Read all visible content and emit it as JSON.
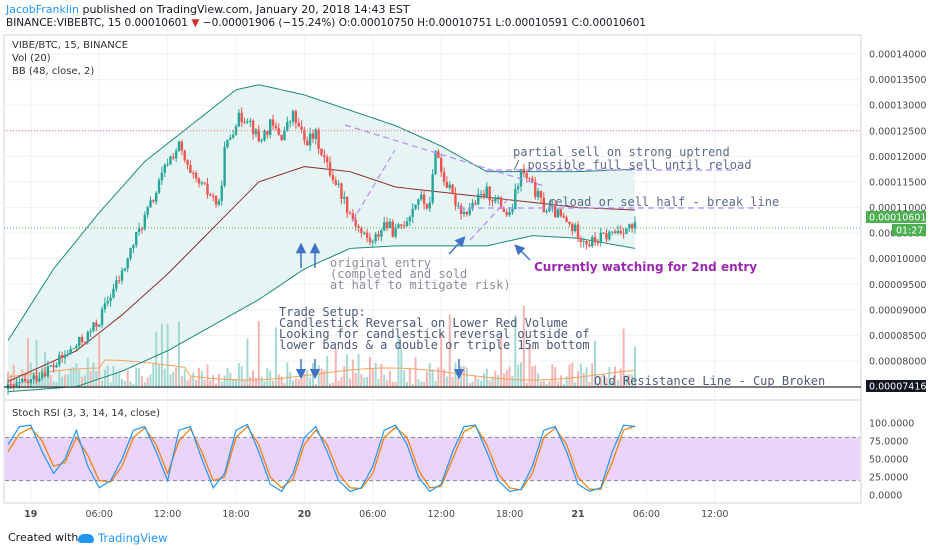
{
  "header": {
    "author": "JacobFranklin",
    "published": "published on TradingView.com, January 20, 2018 14:43 EST",
    "symbol": "BINANCE:VIBEBTC, 15",
    "last": "0.00010601",
    "change": "−0.00001906 (−15.24%)",
    "open": "O:0.00010750",
    "high": "H:0.00010751",
    "low": "L:0.00010591",
    "close": "C:0.00010601"
  },
  "indicators": {
    "main": "VIBE/BTC, 15, BINANCE",
    "vol": "Vol (20)",
    "bb": "BB (48, close, 2)",
    "stoch": "Stoch RSI (3, 3, 14, 14, close)"
  },
  "annotations": {
    "partial_sell_1": "partial sell on strong uptrend",
    "partial_sell_2": "/ possible full sell until reload",
    "reload": "reload or sell half - break line",
    "watching": "Currently watching for 2nd entry",
    "orig_1": "original entry",
    "orig_2": "(completed and sold",
    "orig_3": "at half to mitigate risk)",
    "setup_1": "Trade Setup:",
    "setup_2": "Candlestick Reversal on Lower Red Volume",
    "setup_3": "Looking for candlestick reversal outside of",
    "setup_4": "lower bands & a double or triple 15m bottom",
    "resistance": "Old Resistance Line - Cup Broken"
  },
  "price_axis": {
    "ticks": [
      "0.00014000",
      "0.00013500",
      "0.00013000",
      "0.00012500",
      "0.00012000",
      "0.00011500",
      "0.00011000",
      "0.00010500",
      "0.00010000",
      "0.00009500",
      "0.00009000",
      "0.00008500",
      "0.00008000"
    ],
    "tick_values": [
      14000,
      13500,
      13000,
      12500,
      12000,
      11500,
      11000,
      10500,
      10000,
      9500,
      9000,
      8500,
      8000
    ],
    "current_label": "0.00010601",
    "countdown": "01:27",
    "resistance_label": "0.00007416"
  },
  "stoch_axis": {
    "ticks": [
      "100.0000",
      "75.0000",
      "50.0000",
      "25.0000",
      "0.0000"
    ],
    "tick_values": [
      100,
      75,
      50,
      25,
      0
    ]
  },
  "time_axis": {
    "labels": [
      "19",
      "06:00",
      "12:00",
      "18:00",
      "20",
      "06:00",
      "12:00",
      "18:00",
      "21",
      "06:00",
      "12:00"
    ],
    "hours": [
      0,
      6,
      12,
      18,
      24,
      30,
      36,
      42,
      48,
      54,
      60
    ]
  },
  "footer": {
    "created": "Created with",
    "brand": "TradingView"
  },
  "colors": {
    "up": "#26a69a",
    "down": "#ef5350",
    "bb_band": "#1b8a7c",
    "bb_mid": "#8b2e2e",
    "bb_fill": "#e6f5f3",
    "dashed": "#b388ff",
    "watching": "#9c27b0",
    "anno_text": "#5c6b8a",
    "stoch_k": "#2196f3",
    "stoch_d": "#f57c00",
    "stoch_fill": "#ead4fb",
    "resistance": "#333333",
    "current": "#4caf50",
    "arrow": "#3f73c7"
  },
  "chart_data": {
    "type": "candlestick",
    "title": "VIBE/BTC, 15, BINANCE",
    "x_start": "2018-01-19 00:00",
    "x_range_hours": [
      -2,
      66
    ],
    "y_unit": "1e-8 BTC",
    "ylim": [
      7300,
      14200
    ],
    "series": [
      {
        "name": "VIBE/BTC",
        "close_path": [
          [
            -2,
            7450
          ],
          [
            0,
            7600
          ],
          [
            1,
            7800
          ],
          [
            2,
            7900
          ],
          [
            3,
            8100
          ],
          [
            4,
            8300
          ],
          [
            5,
            8500
          ],
          [
            6,
            8800
          ],
          [
            7,
            9300
          ],
          [
            8,
            9700
          ],
          [
            9,
            10300
          ],
          [
            10,
            10800
          ],
          [
            11,
            11300
          ],
          [
            12,
            11900
          ],
          [
            13,
            12200
          ],
          [
            14,
            11600
          ],
          [
            15,
            11400
          ],
          [
            16,
            11200
          ],
          [
            16.5,
            11000
          ],
          [
            17,
            12100
          ],
          [
            18,
            12700
          ],
          [
            19,
            12800
          ],
          [
            20,
            12300
          ],
          [
            21,
            12600
          ],
          [
            22,
            12400
          ],
          [
            23,
            12800
          ],
          [
            24,
            12300
          ],
          [
            25,
            12400
          ],
          [
            26,
            11800
          ],
          [
            27,
            11400
          ],
          [
            28,
            10900
          ],
          [
            29,
            10500
          ],
          [
            30,
            10300
          ],
          [
            31,
            10700
          ],
          [
            32,
            10500
          ],
          [
            33,
            10800
          ],
          [
            34,
            11200
          ],
          [
            35,
            11000
          ],
          [
            35.5,
            12200
          ],
          [
            36,
            11700
          ],
          [
            37,
            11200
          ],
          [
            38,
            10900
          ],
          [
            39,
            11100
          ],
          [
            40,
            11300
          ],
          [
            41,
            11100
          ],
          [
            42,
            10800
          ],
          [
            43,
            11700
          ],
          [
            44,
            11400
          ],
          [
            45,
            11000
          ],
          [
            46,
            10900
          ],
          [
            47,
            10700
          ],
          [
            48,
            10500
          ],
          [
            49,
            10300
          ],
          [
            50,
            10400
          ],
          [
            51,
            10500
          ],
          [
            52,
            10600
          ],
          [
            53,
            10600
          ]
        ]
      },
      {
        "name": "BB upper",
        "points": [
          [
            -2,
            8400
          ],
          [
            2,
            9800
          ],
          [
            6,
            10900
          ],
          [
            10,
            11900
          ],
          [
            14,
            12600
          ],
          [
            18,
            13300
          ],
          [
            20,
            13400
          ],
          [
            24,
            13200
          ],
          [
            28,
            12900
          ],
          [
            32,
            12600
          ],
          [
            36,
            12200
          ],
          [
            40,
            11700
          ],
          [
            44,
            11700
          ],
          [
            48,
            11700
          ],
          [
            53,
            11750
          ]
        ]
      },
      {
        "name": "BB basis",
        "points": [
          [
            -2,
            7600
          ],
          [
            4,
            8200
          ],
          [
            8,
            8900
          ],
          [
            12,
            9700
          ],
          [
            16,
            10600
          ],
          [
            20,
            11500
          ],
          [
            24,
            11800
          ],
          [
            28,
            11700
          ],
          [
            32,
            11400
          ],
          [
            36,
            11300
          ],
          [
            40,
            11200
          ],
          [
            44,
            11100
          ],
          [
            48,
            11000
          ],
          [
            53,
            10950
          ]
        ]
      },
      {
        "name": "BB lower",
        "points": [
          [
            -2,
            7400
          ],
          [
            4,
            7500
          ],
          [
            8,
            7800
          ],
          [
            12,
            8200
          ],
          [
            16,
            8700
          ],
          [
            20,
            9200
          ],
          [
            24,
            9800
          ],
          [
            28,
            10200
          ],
          [
            32,
            10250
          ],
          [
            36,
            10250
          ],
          [
            40,
            10250
          ],
          [
            44,
            10450
          ],
          [
            48,
            10400
          ],
          [
            53,
            10200
          ]
        ]
      }
    ],
    "levels": {
      "resistance": 7416,
      "last": 10601
    },
    "stoch_rsi": {
      "ylim": [
        0,
        100
      ],
      "bands": [
        20,
        80
      ],
      "k_points": [
        [
          -2,
          70
        ],
        [
          -1,
          95
        ],
        [
          0,
          97
        ],
        [
          1,
          60
        ],
        [
          2,
          30
        ],
        [
          3,
          50
        ],
        [
          4,
          90
        ],
        [
          5,
          40
        ],
        [
          6,
          10
        ],
        [
          7,
          20
        ],
        [
          8,
          50
        ],
        [
          9,
          90
        ],
        [
          10,
          95
        ],
        [
          11,
          60
        ],
        [
          12,
          20
        ],
        [
          13,
          90
        ],
        [
          14,
          95
        ],
        [
          15,
          50
        ],
        [
          16,
          10
        ],
        [
          17,
          30
        ],
        [
          18,
          90
        ],
        [
          19,
          98
        ],
        [
          20,
          60
        ],
        [
          21,
          15
        ],
        [
          22,
          5
        ],
        [
          23,
          30
        ],
        [
          24,
          80
        ],
        [
          25,
          95
        ],
        [
          26,
          60
        ],
        [
          27,
          20
        ],
        [
          28,
          5
        ],
        [
          29,
          10
        ],
        [
          30,
          40
        ],
        [
          31,
          90
        ],
        [
          32,
          97
        ],
        [
          33,
          70
        ],
        [
          34,
          25
        ],
        [
          35,
          5
        ],
        [
          36,
          15
        ],
        [
          37,
          60
        ],
        [
          38,
          95
        ],
        [
          39,
          97
        ],
        [
          40,
          60
        ],
        [
          41,
          20
        ],
        [
          42,
          5
        ],
        [
          43,
          8
        ],
        [
          44,
          40
        ],
        [
          45,
          90
        ],
        [
          46,
          95
        ],
        [
          47,
          60
        ],
        [
          48,
          15
        ],
        [
          49,
          5
        ],
        [
          50,
          10
        ],
        [
          51,
          60
        ],
        [
          52,
          97
        ],
        [
          53,
          95
        ]
      ],
      "d_points": [
        [
          -2,
          60
        ],
        [
          -1,
          85
        ],
        [
          0,
          93
        ],
        [
          1,
          75
        ],
        [
          2,
          40
        ],
        [
          3,
          45
        ],
        [
          4,
          80
        ],
        [
          5,
          55
        ],
        [
          6,
          20
        ],
        [
          7,
          18
        ],
        [
          8,
          40
        ],
        [
          9,
          80
        ],
        [
          10,
          93
        ],
        [
          11,
          70
        ],
        [
          12,
          30
        ],
        [
          13,
          75
        ],
        [
          14,
          92
        ],
        [
          15,
          60
        ],
        [
          16,
          20
        ],
        [
          17,
          25
        ],
        [
          18,
          80
        ],
        [
          19,
          95
        ],
        [
          20,
          70
        ],
        [
          21,
          25
        ],
        [
          22,
          10
        ],
        [
          23,
          22
        ],
        [
          24,
          70
        ],
        [
          25,
          90
        ],
        [
          26,
          70
        ],
        [
          27,
          30
        ],
        [
          28,
          10
        ],
        [
          29,
          9
        ],
        [
          30,
          30
        ],
        [
          31,
          80
        ],
        [
          32,
          94
        ],
        [
          33,
          80
        ],
        [
          34,
          35
        ],
        [
          35,
          10
        ],
        [
          36,
          12
        ],
        [
          37,
          50
        ],
        [
          38,
          88
        ],
        [
          39,
          96
        ],
        [
          40,
          70
        ],
        [
          41,
          30
        ],
        [
          42,
          10
        ],
        [
          43,
          7
        ],
        [
          44,
          30
        ],
        [
          45,
          80
        ],
        [
          46,
          93
        ],
        [
          47,
          70
        ],
        [
          48,
          25
        ],
        [
          49,
          8
        ],
        [
          50,
          8
        ],
        [
          51,
          45
        ],
        [
          52,
          90
        ],
        [
          53,
          96
        ]
      ]
    }
  }
}
